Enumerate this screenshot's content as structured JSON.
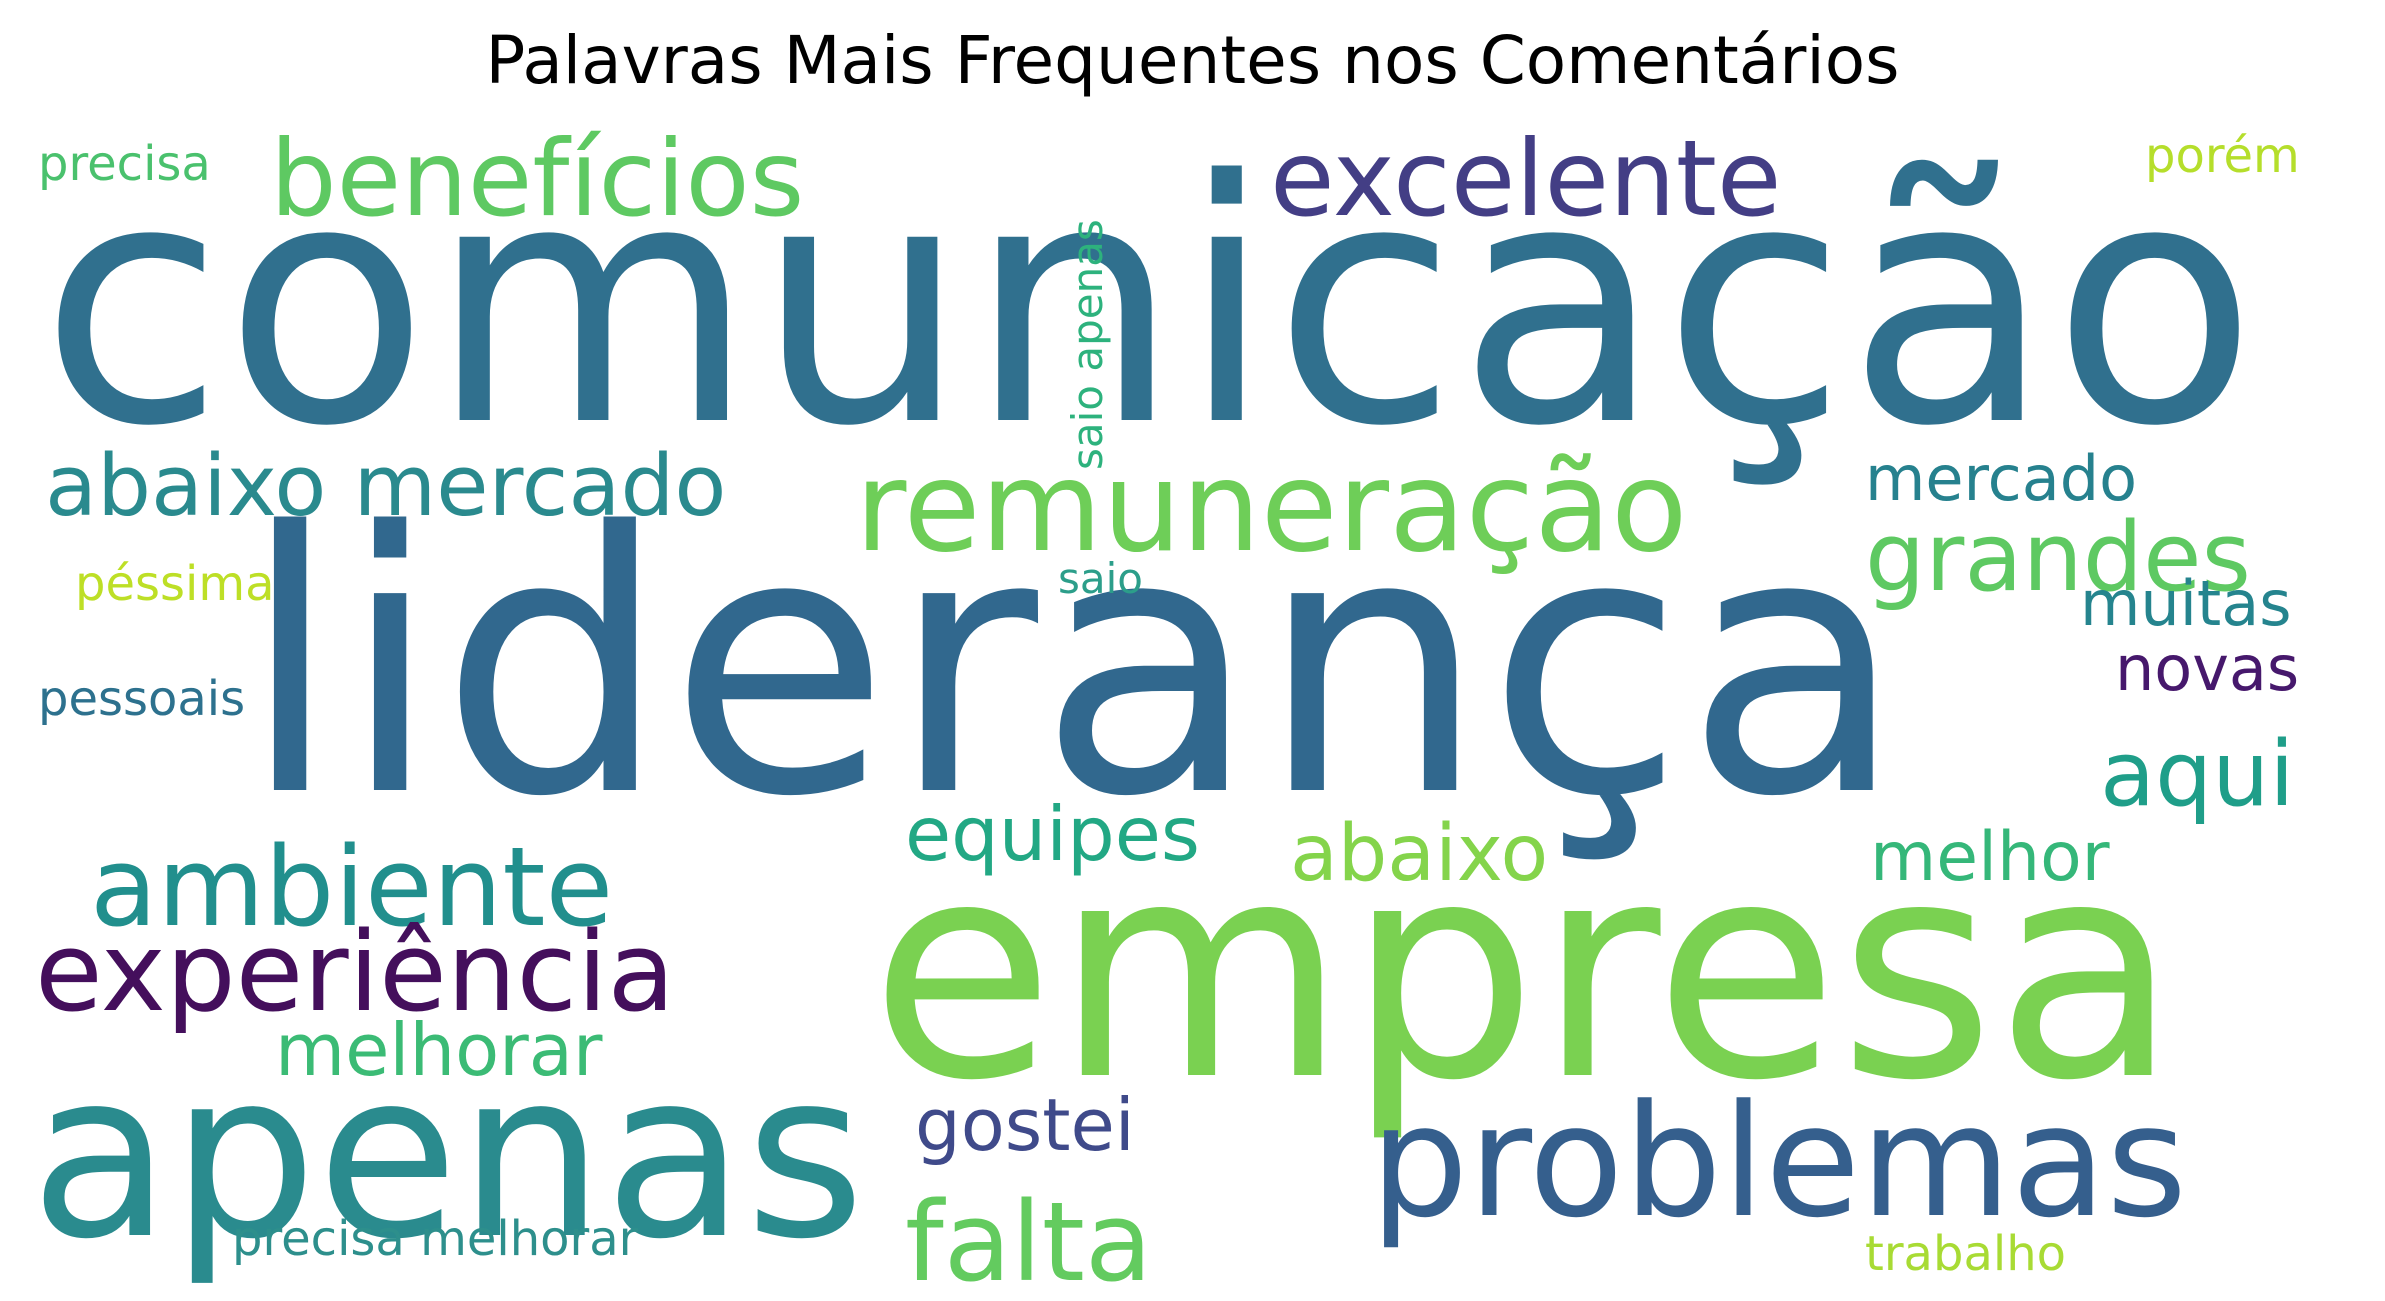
{
  "title": "Palavras Mais Frequentes nos Comentários",
  "words": [
    {
      "text": "comunicação",
      "color": "#30708e"
    },
    {
      "text": "liderança",
      "color": "#31688e"
    },
    {
      "text": "empresa",
      "color": "#7ad151"
    },
    {
      "text": "apenas",
      "color": "#2a8b8e"
    },
    {
      "text": "problemas",
      "color": "#355f8d"
    },
    {
      "text": "benefícios",
      "color": "#5ec962"
    },
    {
      "text": "excelente",
      "color": "#433e85"
    },
    {
      "text": "remuneração",
      "color": "#6ece58"
    },
    {
      "text": "ambiente",
      "color": "#218f8d"
    },
    {
      "text": "experiência",
      "color": "#440f5c"
    },
    {
      "text": "abaixo mercado",
      "color": "#2a8a8e"
    },
    {
      "text": "grandes",
      "color": "#5ec962"
    },
    {
      "text": "falta",
      "color": "#63cb5f"
    },
    {
      "text": "aqui",
      "color": "#1f9e89"
    },
    {
      "text": "abaixo",
      "color": "#84d44b"
    },
    {
      "text": "equipes",
      "color": "#22a884"
    },
    {
      "text": "melhorar",
      "color": "#3bbb75"
    },
    {
      "text": "gostei",
      "color": "#3f4a8a"
    },
    {
      "text": "mercado",
      "color": "#26818e"
    },
    {
      "text": "muitas",
      "color": "#25848e"
    },
    {
      "text": "novas",
      "color": "#46186c"
    },
    {
      "text": "melhor",
      "color": "#35b779"
    },
    {
      "text": "saio apenas",
      "color": "#2db27d"
    },
    {
      "text": "precisa",
      "color": "#4ac16d"
    },
    {
      "text": "porém",
      "color": "#b5de2b"
    },
    {
      "text": "péssima",
      "color": "#bddf26"
    },
    {
      "text": "pessoais",
      "color": "#2d718e"
    },
    {
      "text": "saio",
      "color": "#2c9e8a"
    },
    {
      "text": "precisa melhorar",
      "color": "#2d8f8c"
    },
    {
      "text": "trabalho",
      "color": "#a8db34"
    }
  ]
}
